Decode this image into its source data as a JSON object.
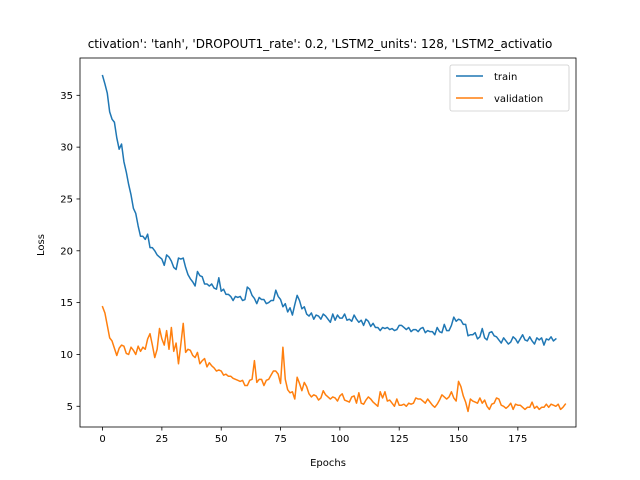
{
  "chart_data": {
    "type": "line",
    "title": "ctivation': 'tanh', 'DROPOUT1_rate': 0.2, 'LSTM2_units': 128, 'LSTM2_activatio",
    "xlabel": "Epochs",
    "ylabel": "Loss",
    "xlim": [
      -9.5,
      199.5
    ],
    "ylim": [
      3.0,
      38.6
    ],
    "xticks": [
      0,
      25,
      50,
      75,
      100,
      125,
      150,
      175
    ],
    "yticks": [
      5,
      10,
      15,
      20,
      25,
      30,
      35
    ],
    "grid": false,
    "legend_position": "top-right",
    "series": [
      {
        "name": "train",
        "color": "#1f77b4",
        "values": [
          36.9,
          36.1,
          35.2,
          33.4,
          32.7,
          32.4,
          30.9,
          29.8,
          30.3,
          28.6,
          27.6,
          26.4,
          25.4,
          24.1,
          23.6,
          22.4,
          21.4,
          21.4,
          21.1,
          21.6,
          20.3,
          20.3,
          20.0,
          19.6,
          19.4,
          19.2,
          18.6,
          19.6,
          19.4,
          19.0,
          18.4,
          18.2,
          19.3,
          19.2,
          19.3,
          18.4,
          17.7,
          17.3,
          17.0,
          16.6,
          18.0,
          17.6,
          17.5,
          16.8,
          16.8,
          16.6,
          16.8,
          16.4,
          16.3,
          17.4,
          16.1,
          16.3,
          15.8,
          15.8,
          15.6,
          15.2,
          15.6,
          15.5,
          15.6,
          15.2,
          15.3,
          16.5,
          16.3,
          15.7,
          15.4,
          14.9,
          15.5,
          15.3,
          15.3,
          14.9,
          15.0,
          15.2,
          15.2,
          16.2,
          15.6,
          15.3,
          14.6,
          14.9,
          14.1,
          14.5,
          13.8,
          14.8,
          15.7,
          15.2,
          14.4,
          14.6,
          13.9,
          13.7,
          14.0,
          13.4,
          13.8,
          13.7,
          13.4,
          13.9,
          13.7,
          13.4,
          13.1,
          13.9,
          13.3,
          13.8,
          13.5,
          13.5,
          13.9,
          13.3,
          13.4,
          13.2,
          13.8,
          13.4,
          13.1,
          13.3,
          12.8,
          13.4,
          13.2,
          12.7,
          13.0,
          12.6,
          12.6,
          12.3,
          12.6,
          12.5,
          12.6,
          12.4,
          12.5,
          12.3,
          12.4,
          12.8,
          12.8,
          12.6,
          12.4,
          12.6,
          12.2,
          12.4,
          12.4,
          12.2,
          12.5,
          12.6,
          12.1,
          12.3,
          12.2,
          12.2,
          11.9,
          12.6,
          12.2,
          12.1,
          12.9,
          12.3,
          12.3,
          12.8,
          13.6,
          13.2,
          13.4,
          13.3,
          12.9,
          12.9,
          11.8,
          11.9,
          11.9,
          12.1,
          11.5,
          11.7,
          12.5,
          11.6,
          11.4,
          12.1,
          12.2,
          11.8,
          11.7,
          11.4,
          11.1,
          11.6,
          11.3,
          11.0,
          11.2,
          11.7,
          11.5,
          11.1,
          11.5,
          11.9,
          11.4,
          11.3,
          11.7,
          11.3,
          11.0,
          11.6,
          11.4,
          11.6,
          10.9,
          11.5,
          11.4,
          11.7,
          11.3,
          11.5
        ]
      },
      {
        "name": "validation",
        "color": "#ff7f0e",
        "values": [
          14.6,
          14.0,
          12.8,
          11.6,
          11.3,
          10.6,
          9.9,
          10.6,
          10.9,
          10.8,
          10.1,
          10.0,
          10.7,
          10.4,
          10.0,
          10.8,
          10.3,
          10.7,
          10.5,
          11.5,
          12.0,
          10.9,
          9.7,
          10.5,
          12.5,
          11.5,
          10.9,
          12.3,
          10.5,
          12.6,
          10.3,
          11.1,
          9.1,
          11.0,
          13.0,
          10.2,
          10.5,
          10.4,
          9.9,
          9.7,
          10.2,
          9.1,
          9.4,
          9.6,
          8.8,
          9.2,
          8.9,
          8.7,
          8.4,
          8.5,
          8.4,
          8.0,
          8.1,
          7.9,
          7.9,
          7.7,
          7.6,
          7.5,
          7.4,
          7.5,
          7.0,
          7.0,
          7.5,
          7.6,
          9.4,
          7.3,
          7.6,
          7.6,
          7.0,
          7.5,
          7.6,
          8.0,
          8.4,
          8.4,
          8.1,
          7.2,
          10.7,
          7.6,
          6.6,
          6.3,
          6.4,
          5.7,
          7.8,
          7.2,
          6.5,
          7.3,
          6.9,
          6.2,
          5.9,
          6.1,
          6.0,
          5.6,
          5.8,
          6.5,
          6.1,
          5.9,
          5.7,
          5.9,
          5.8,
          5.5,
          6.0,
          6.2,
          5.6,
          5.5,
          5.4,
          5.9,
          6.0,
          5.3,
          6.3,
          5.3,
          5.2,
          5.6,
          5.9,
          5.7,
          5.4,
          5.2,
          5.0,
          6.4,
          5.8,
          6.4,
          5.5,
          5.6,
          5.3,
          5.0,
          5.7,
          5.1,
          5.1,
          5.2,
          5.0,
          5.3,
          5.2,
          5.3,
          5.8,
          5.7,
          5.7,
          5.5,
          5.3,
          5.7,
          5.4,
          5.1,
          4.9,
          5.2,
          5.6,
          6.1,
          5.9,
          5.7,
          5.9,
          6.4,
          5.8,
          5.5,
          7.4,
          6.9,
          6.0,
          5.4,
          4.5,
          5.7,
          5.5,
          5.4,
          5.3,
          5.8,
          5.3,
          5.6,
          5.0,
          4.7,
          5.2,
          5.3,
          5.8,
          5.7,
          5.1,
          5.0,
          4.8,
          5.0,
          5.3,
          4.7,
          5.2,
          5.1,
          5.1,
          4.9,
          4.7,
          4.9,
          4.9,
          5.4,
          4.8,
          5.0,
          4.7,
          4.9,
          4.9,
          5.2,
          4.9,
          5.2,
          5.1,
          5.0,
          5.2,
          4.7,
          4.9,
          5.2
        ]
      }
    ]
  }
}
